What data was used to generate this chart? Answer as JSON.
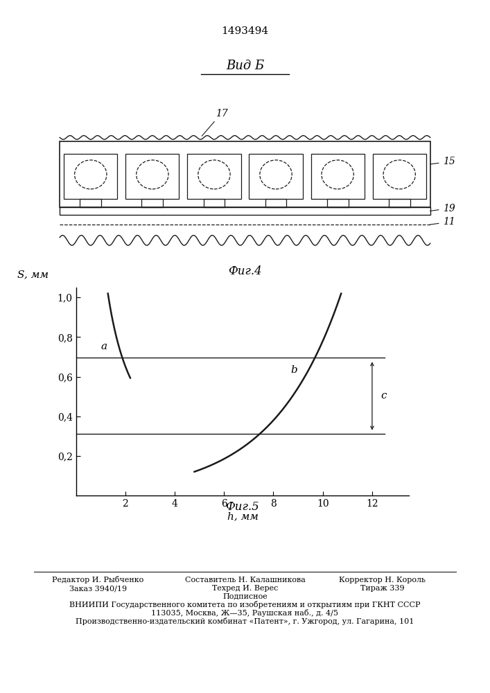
{
  "patent_number": "1493494",
  "vid_label": "Вид Б",
  "fig4_label": "Фиг.4",
  "fig5_label": "Фиг.5",
  "curve_a_label": "a",
  "curve_b_label": "b",
  "curve_c_label": "c",
  "xlabel": "h, мм",
  "ylabel": "S, мм",
  "xticks": [
    2,
    4,
    6,
    8,
    10,
    12
  ],
  "yticks": [
    0.2,
    0.4,
    0.6,
    0.8,
    1.0
  ],
  "xlim": [
    0,
    13.5
  ],
  "ylim": [
    0,
    1.05
  ],
  "hline_y": 0.695,
  "lower_hline_y": 0.31,
  "hline_x_end": 12.5,
  "vline_x": 12.0,
  "line_color": "#1a1a1a",
  "bottom_editor": "Редактор И. Рыбченко",
  "bottom_compiler": "Составитель Н. Калашникова",
  "bottom_corrector": "Корректор Н. Король",
  "bottom_order": "Заказ 3940/19",
  "bottom_techred": "Техред И. Верес",
  "bottom_tirazh": "Тираж 339",
  "bottom_podpisnoe": "Подписное",
  "bottom_vniipи": "ВНИИПИ Государственного комитета по изобретениям и открытиям при ГКНТ СССР",
  "bottom_address1": "113035, Москва, Ж—35, Раушская наб., д. 4/5",
  "bottom_address2": "Производственно-издательский комбинат «Патент», г. Ужгород, ул. Гагарина, 101"
}
